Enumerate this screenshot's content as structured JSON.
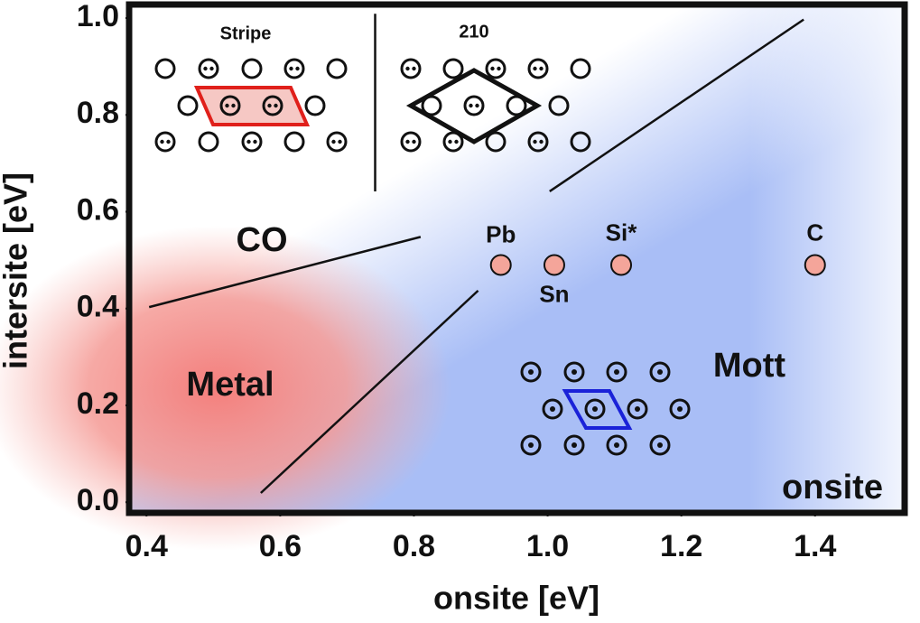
{
  "chart_data": {
    "type": "scatter",
    "xlabel": "onsite [eV]",
    "ylabel": "intersite [eV]",
    "xlim": [
      0.374,
      1.534
    ],
    "ylim": [
      -0.022,
      1.028
    ],
    "xticks": [
      0.4,
      0.6,
      0.8,
      {
        "value": 1,
        "label": "1.0"
      },
      1.2,
      1.4
    ],
    "yticks": [
      {
        "value": 0,
        "label": "0.0"
      },
      0.2,
      0.4,
      0.6,
      0.8,
      {
        "value": 1,
        "label": "1.0"
      }
    ],
    "points": {
      "labels": [
        "Pb",
        "Sn",
        "Si*",
        "C"
      ],
      "x": [
        0.93,
        1.01,
        1.11,
        1.4
      ],
      "y": [
        0.49,
        0.49,
        0.49,
        0.49
      ],
      "color": "#f4a59a"
    },
    "boundaries": [
      {
        "x": [
          0.404,
          0.81
        ],
        "y": [
          0.403,
          0.548
        ]
      },
      {
        "x": [
          0.571,
          0.896
        ],
        "y": [
          0.019,
          0.437
        ]
      },
      {
        "x": [
          1.003,
          1.383
        ],
        "y": [
          0.642,
          0.997
        ]
      },
      {
        "x": [
          0.742,
          0.742
        ],
        "y": [
          1.009,
          0.642
        ]
      }
    ],
    "annotations": {
      "co": "CO",
      "metal": "Metal",
      "mott": "Mott",
      "onsite": "onsite",
      "stripe": "Stripe",
      "r210": "210"
    }
  }
}
